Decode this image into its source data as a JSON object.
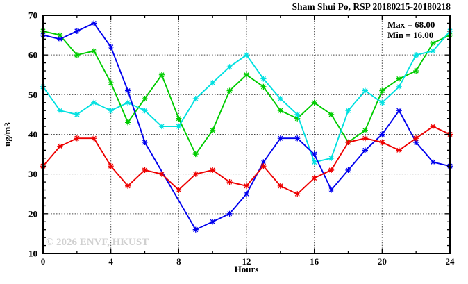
{
  "page": {
    "background": "#ffffff"
  },
  "chart_data": {
    "type": "line",
    "title": "Sham Shui Po, RSP 20180215-20180218",
    "xlabel": "Hours",
    "ylabel": "ug/m3",
    "xlim": [
      0,
      24
    ],
    "ylim": [
      10,
      70
    ],
    "x_ticks": [
      0,
      4,
      8,
      12,
      16,
      20,
      24
    ],
    "y_ticks": [
      10,
      20,
      30,
      40,
      50,
      60,
      70
    ],
    "x_minor_step": 2,
    "y_minor_step": 2,
    "grid": true,
    "legend_position": "none",
    "annotations": {
      "max_label": "Max = 68.00",
      "min_label": "Min = 16.00"
    },
    "watermark": "© 2026 ENVF, HKUST",
    "x": [
      0,
      1,
      2,
      3,
      4,
      5,
      6,
      7,
      8,
      9,
      10,
      11,
      12,
      13,
      14,
      15,
      16,
      17,
      18,
      19,
      20,
      21,
      22,
      23,
      24
    ],
    "series": [
      {
        "name": "green-series",
        "color": "#00cc00",
        "values": [
          66,
          65,
          60,
          61,
          53,
          43,
          49,
          55,
          44,
          35,
          41,
          51,
          55,
          52,
          46,
          44,
          48,
          45,
          38,
          41,
          51,
          54,
          56,
          63,
          65
        ]
      },
      {
        "name": "cyan-series",
        "color": "#00e0e0",
        "values": [
          52,
          46,
          45,
          48,
          46,
          48,
          46,
          42,
          42,
          49,
          53,
          57,
          60,
          54,
          49,
          45,
          33,
          34,
          46,
          51,
          48,
          52,
          60,
          61,
          66
        ]
      },
      {
        "name": "blue-series",
        "color": "#0000ee",
        "values": [
          65,
          64,
          66,
          68,
          62,
          51,
          38,
          null,
          null,
          16,
          18,
          20,
          25,
          33,
          39,
          39,
          35,
          26,
          31,
          36,
          40,
          46,
          38,
          33,
          32
        ]
      },
      {
        "name": "red-series",
        "color": "#ee0000",
        "values": [
          32,
          37,
          39,
          39,
          32,
          27,
          31,
          30,
          26,
          30,
          31,
          28,
          27,
          32,
          27,
          25,
          29,
          31,
          38,
          39,
          38,
          36,
          39,
          42,
          40
        ]
      }
    ]
  }
}
